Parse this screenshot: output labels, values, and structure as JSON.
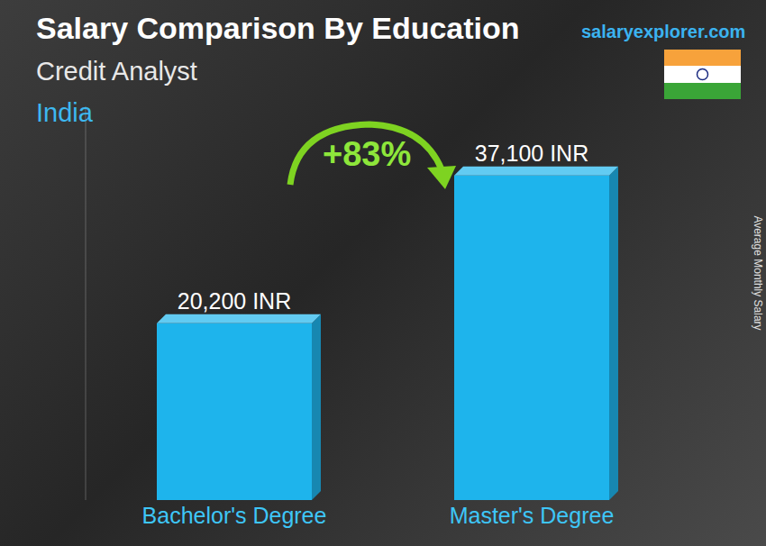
{
  "chart_data": {
    "type": "bar",
    "title": "Salary Comparison By Education",
    "subtitle": "Credit Analyst",
    "annotations": {
      "region": "India",
      "source": "salaryexplorer.com",
      "change": "+83%"
    },
    "y_label": "Average Monthly Salary",
    "categories": [
      "Bachelor's Degree",
      "Master's Degree"
    ],
    "values": [
      20200,
      37100
    ],
    "value_labels": [
      "20,200 INR",
      "37,100 INR"
    ],
    "data_labels": true,
    "color": "#1eb4ec",
    "ylim": [
      0,
      45000
    ],
    "yticks": [],
    "tick_labels": "x",
    "grid": false
  }
}
